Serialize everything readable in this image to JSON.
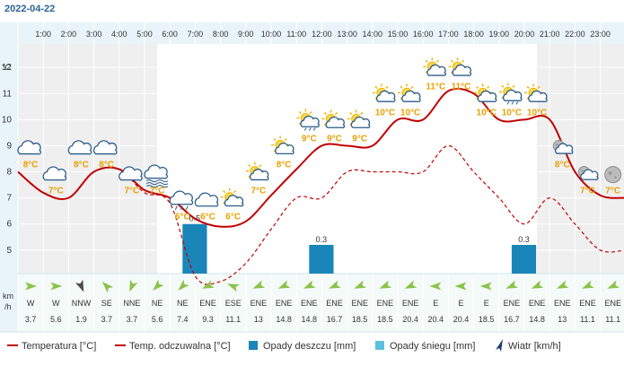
{
  "date": "2022-04-22",
  "hours": [
    "1:00",
    "2:00",
    "3:00",
    "4:00",
    "5:00",
    "6:00",
    "7:00",
    "8:00",
    "9:00",
    "10:00",
    "11:00",
    "12:00",
    "13:00",
    "14:00",
    "15:00",
    "16:00",
    "17:00",
    "18:00",
    "19:00",
    "20:00",
    "21:00",
    "22:00",
    "23:00"
  ],
  "temp_axis": {
    "unit": "°C",
    "ticks": [
      12,
      11,
      10,
      9,
      8,
      7,
      6,
      5
    ],
    "range": [
      4.1,
      12.9
    ]
  },
  "wind_unit": "km\n/h",
  "chart_data": {
    "type": "line",
    "x": [
      0,
      1,
      2,
      3,
      4,
      5,
      6,
      7,
      8,
      9,
      10,
      11,
      12,
      13,
      14,
      15,
      16,
      17,
      18,
      19,
      20,
      21,
      22,
      23,
      24
    ],
    "temperature": [
      8.0,
      7.2,
      7.0,
      8.0,
      8.1,
      7.3,
      7.0,
      6.2,
      5.9,
      6.1,
      7.1,
      8.1,
      9.0,
      9.0,
      9.0,
      10.0,
      10.0,
      11.1,
      11.0,
      10.0,
      10.0,
      10.0,
      8.0,
      7.1,
      7.0
    ],
    "feels_like": [
      8.0,
      7.2,
      7.0,
      8.0,
      8.1,
      7.2,
      6.8,
      4.0,
      3.8,
      4.5,
      5.8,
      7.0,
      7.0,
      8.0,
      8.0,
      8.0,
      8.0,
      9.0,
      8.0,
      7.0,
      6.0,
      7.0,
      6.0,
      5.0,
      5.0
    ],
    "rain": [
      {
        "x": 7,
        "value": 0.5,
        "fill_top": 6.0
      },
      {
        "x": 12,
        "value": 0.3,
        "fill_top": 5.2
      },
      {
        "x": 20,
        "value": 0.3,
        "fill_top": 5.2
      }
    ]
  },
  "temp_labels": [
    {
      "x": 0.5,
      "value": "8°C",
      "temp": 8,
      "icon": "cloud-icon"
    },
    {
      "x": 1.5,
      "value": "7°C",
      "temp": 7,
      "icon": "cloud-icon"
    },
    {
      "x": 2.5,
      "value": "8°C",
      "temp": 8,
      "icon": "cloud-icon"
    },
    {
      "x": 3.5,
      "value": "8°C",
      "temp": 8,
      "icon": "cloud-icon"
    },
    {
      "x": 4.5,
      "value": "7°C",
      "temp": 7,
      "icon": "cloud-icon"
    },
    {
      "x": 5.5,
      "value": "7°C",
      "temp": 7,
      "icon": "fog-cloud-icon"
    },
    {
      "x": 6.5,
      "value": "6°C",
      "temp": 6,
      "icon": "rain-cloud-icon"
    },
    {
      "x": 7.5,
      "value": "6°C",
      "temp": 6,
      "icon": "cloud-icon"
    },
    {
      "x": 8.5,
      "value": "6°C",
      "temp": 6,
      "icon": "sun-cloud-icon"
    },
    {
      "x": 9.5,
      "value": "7°C",
      "temp": 7,
      "icon": "sun-cloud-icon"
    },
    {
      "x": 10.5,
      "value": "8°C",
      "temp": 8,
      "icon": "sun-cloud-icon"
    },
    {
      "x": 11.5,
      "value": "9°C",
      "temp": 9,
      "icon": "sun-rain-icon"
    },
    {
      "x": 12.5,
      "value": "9°C",
      "temp": 9,
      "icon": "sun-cloud-icon"
    },
    {
      "x": 13.5,
      "value": "9°C",
      "temp": 9,
      "icon": "sun-cloud-icon"
    },
    {
      "x": 14.5,
      "value": "10°C",
      "temp": 10,
      "icon": "sun-cloud-icon"
    },
    {
      "x": 15.5,
      "value": "10°C",
      "temp": 10,
      "icon": "sun-cloud-icon"
    },
    {
      "x": 16.5,
      "value": "11°C",
      "temp": 11,
      "icon": "sun-cloud-icon"
    },
    {
      "x": 17.5,
      "value": "11°C",
      "temp": 11,
      "icon": "sun-cloud-icon"
    },
    {
      "x": 18.5,
      "value": "10°C",
      "temp": 10,
      "icon": "sun-cloud-icon"
    },
    {
      "x": 19.5,
      "value": "10°C",
      "temp": 10,
      "icon": "sun-rain-icon"
    },
    {
      "x": 20.5,
      "value": "10°C",
      "temp": 10,
      "icon": "sun-cloud-icon"
    },
    {
      "x": 21.5,
      "value": "8°C",
      "temp": 8,
      "icon": "moon-cloud-icon"
    },
    {
      "x": 22.5,
      "value": "7°C",
      "temp": 7,
      "icon": "moon-cloud-icon"
    },
    {
      "x": 23.5,
      "value": "7°C",
      "temp": 7,
      "icon": "moon-icon"
    }
  ],
  "wind": [
    {
      "dir": "W",
      "speed": "3.7",
      "deg": 270
    },
    {
      "dir": "W",
      "speed": "5.6",
      "deg": 270
    },
    {
      "dir": "NNW",
      "speed": "1.9",
      "deg": 337
    },
    {
      "dir": "SE",
      "speed": "3.7",
      "deg": 135
    },
    {
      "dir": "NNE",
      "speed": "3.7",
      "deg": 22
    },
    {
      "dir": "NE",
      "speed": "5.6",
      "deg": 45
    },
    {
      "dir": "NE",
      "speed": "7.4",
      "deg": 45
    },
    {
      "dir": "ENE",
      "speed": "9.3",
      "deg": 67
    },
    {
      "dir": "ESE",
      "speed": "11.1",
      "deg": 112
    },
    {
      "dir": "ENE",
      "speed": "13",
      "deg": 67
    },
    {
      "dir": "ENE",
      "speed": "14.8",
      "deg": 67
    },
    {
      "dir": "ENE",
      "speed": "14.8",
      "deg": 67
    },
    {
      "dir": "ENE",
      "speed": "16.7",
      "deg": 67
    },
    {
      "dir": "ENE",
      "speed": "18.5",
      "deg": 67
    },
    {
      "dir": "ENE",
      "speed": "18.5",
      "deg": 67
    },
    {
      "dir": "ENE",
      "speed": "20.4",
      "deg": 67
    },
    {
      "dir": "E",
      "speed": "20.4",
      "deg": 90
    },
    {
      "dir": "E",
      "speed": "20.4",
      "deg": 90
    },
    {
      "dir": "E",
      "speed": "18.5",
      "deg": 90
    },
    {
      "dir": "ENE",
      "speed": "16.7",
      "deg": 67
    },
    {
      "dir": "ENE",
      "speed": "14.8",
      "deg": 67
    },
    {
      "dir": "ENE",
      "speed": "13",
      "deg": 67
    },
    {
      "dir": "ENE",
      "speed": "11.1",
      "deg": 67
    },
    {
      "dir": "ENE",
      "speed": "11.1",
      "deg": 67
    }
  ],
  "legend": [
    {
      "label": "Temperatura [°C]",
      "type": "line",
      "color": "#c00000"
    },
    {
      "label": "Temp. odczuwalna [°C]",
      "type": "line",
      "color": "#c00000"
    },
    {
      "label": "Opady deszczu [mm]",
      "type": "box",
      "color": "#1a85b8"
    },
    {
      "label": "Opady śniegu [mm]",
      "type": "box",
      "color": "#5bc0de"
    },
    {
      "label": "Wiatr [km/h]",
      "type": "arrow",
      "color": "#1d3d6e"
    }
  ],
  "colors": {
    "temp": "#c00000",
    "rain": "#1a85b8",
    "snow": "#5bc0de",
    "axis_bg": "#e8f4fa",
    "wind_bg": "#f4faf8",
    "night": "#efefef",
    "label": "#e8a000"
  }
}
